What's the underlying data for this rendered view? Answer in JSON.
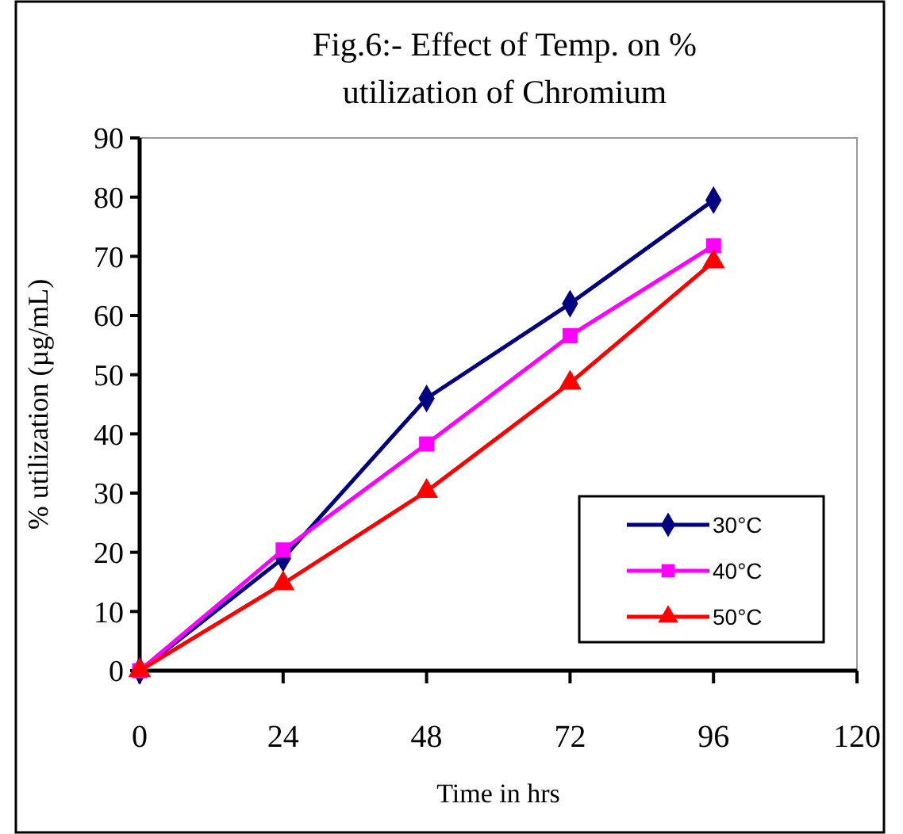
{
  "chart_data": {
    "type": "line",
    "title": "Fig.6:- Effect of Temp. on % utilization of Chromium",
    "xlabel": "Time in hrs",
    "ylabel": "% utilization (µg/mL)",
    "x": [
      0,
      24,
      48,
      72,
      96
    ],
    "xlim": [
      0,
      120
    ],
    "xticks": [
      0,
      24,
      48,
      72,
      96,
      120
    ],
    "ylim": [
      0,
      90
    ],
    "yticks": [
      0,
      10,
      20,
      30,
      40,
      50,
      60,
      70,
      80,
      90
    ],
    "series": [
      {
        "name": "30°C",
        "color": "#000080",
        "marker": "diamond",
        "values": [
          0,
          19,
          46,
          62,
          79.5
        ]
      },
      {
        "name": "40°C",
        "color": "#ff00ff",
        "marker": "square",
        "values": [
          0,
          20.4,
          38.3,
          56.6,
          71.8
        ]
      },
      {
        "name": "50°C",
        "color": "#ff0000",
        "marker": "triangle",
        "values": [
          0,
          14.7,
          30.3,
          48.6,
          69.1
        ]
      }
    ],
    "legend": "bottom right",
    "grid": false,
    "line_style": "solid"
  }
}
